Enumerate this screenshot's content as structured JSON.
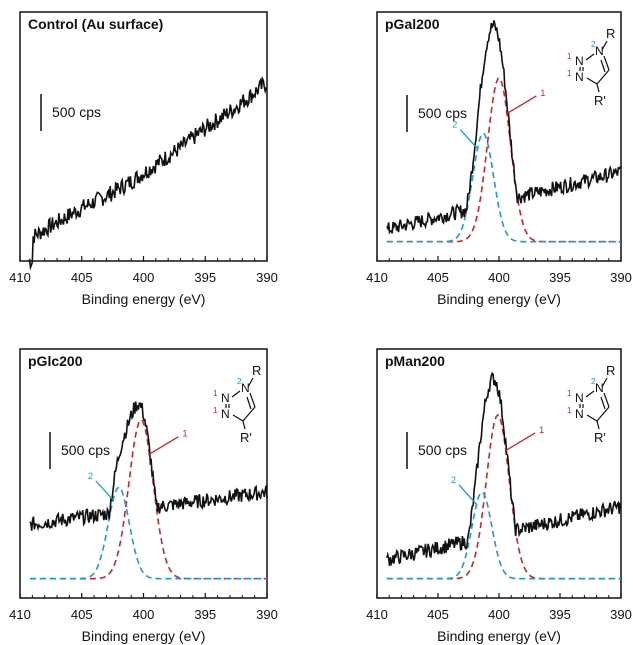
{
  "colors": {
    "spectrum": "#111111",
    "peak1": "#d42027",
    "peak2": "#1a9ad6",
    "label_red": "#d42027",
    "label_blue": "#1a9ad6"
  },
  "scale_bar_label": "500 cps",
  "structure_labels": {
    "R": "R",
    "R_prime": "R'",
    "N": "N",
    "one": "1",
    "two": "2"
  },
  "chart_data": [
    {
      "type": "line",
      "title": "Control (Au surface)",
      "xlabel": "Binding energy (eV)",
      "xlim": [
        410,
        390
      ],
      "xticks": [
        410,
        405,
        400,
        395,
        390
      ],
      "scale_bar": "500 cps",
      "series": [
        {
          "role": "spectrum",
          "x": [
            409,
            407,
            405,
            403,
            401,
            399,
            397,
            395,
            393,
            391,
            390
          ],
          "y": [
            0.1,
            0.16,
            0.22,
            0.27,
            0.33,
            0.4,
            0.47,
            0.55,
            0.62,
            0.7,
            0.74
          ]
        }
      ]
    },
    {
      "type": "line",
      "title": "pGal200",
      "xlabel": "Binding energy (eV)",
      "xlim": [
        410,
        390
      ],
      "xticks": [
        410,
        405,
        400,
        395,
        390
      ],
      "scale_bar": "500 cps",
      "peaks": [
        {
          "label": "1",
          "center": 400.0,
          "height": 0.68,
          "fwhm": 2.2,
          "color": "#d42027"
        },
        {
          "label": "2",
          "center": 401.3,
          "height": 0.45,
          "fwhm": 2.0,
          "color": "#1a9ad6"
        }
      ],
      "spectrum_baseline": [
        0.12,
        0.37
      ],
      "structure": true
    },
    {
      "type": "line",
      "title": "pGlc200",
      "xlabel": "Binding energy (eV)",
      "xlim": [
        410,
        390
      ],
      "xticks": [
        410,
        405,
        400,
        395,
        390
      ],
      "scale_bar": "500 cps",
      "peaks": [
        {
          "label": "1",
          "center": 400.2,
          "height": 0.66,
          "fwhm": 2.3,
          "color": "#d42027"
        },
        {
          "label": "2",
          "center": 402.0,
          "height": 0.38,
          "fwhm": 2.0,
          "color": "#1a9ad6"
        }
      ],
      "spectrum_baseline": [
        0.3,
        0.44
      ],
      "structure": true
    },
    {
      "type": "line",
      "title": "pMan200",
      "xlabel": "Binding energy (eV)",
      "xlim": [
        410,
        390
      ],
      "xticks": [
        410,
        405,
        400,
        395,
        390
      ],
      "scale_bar": "500 cps",
      "peaks": [
        {
          "label": "1",
          "center": 400.1,
          "height": 0.68,
          "fwhm": 2.2,
          "color": "#d42027"
        },
        {
          "label": "2",
          "center": 401.4,
          "height": 0.36,
          "fwhm": 1.9,
          "color": "#1a9ad6"
        }
      ],
      "spectrum_baseline": [
        0.15,
        0.38
      ],
      "structure": true
    }
  ]
}
